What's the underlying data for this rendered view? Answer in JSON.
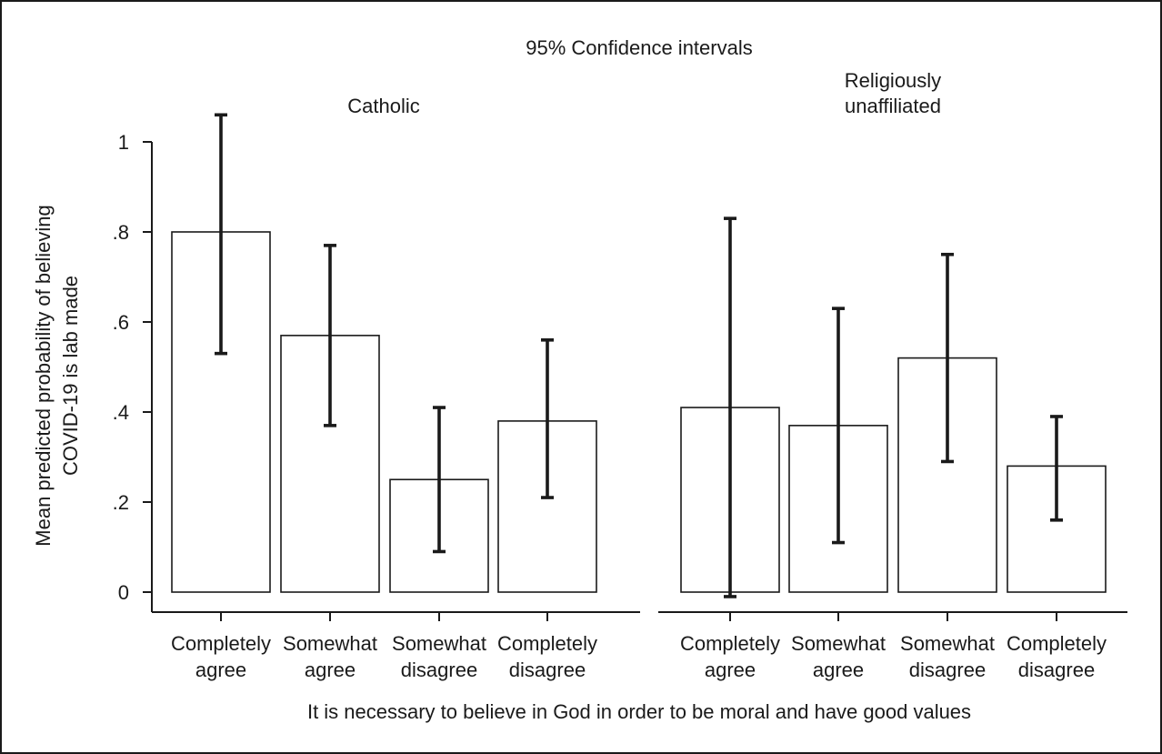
{
  "chart_data": {
    "type": "bar",
    "title": "95% Confidence intervals",
    "ylabel_lines": [
      "Mean predicted probability of believing",
      "COVID-19 is lab made"
    ],
    "xlabel": "It is necessary to believe in God in order to be moral and have good values",
    "ylim": [
      0,
      1.08
    ],
    "yticks": [
      0,
      0.2,
      0.4,
      0.6,
      0.8,
      1
    ],
    "ytick_labels": [
      "0",
      ".2",
      ".4",
      ".6",
      ".8",
      "1"
    ],
    "categories": [
      [
        "Completely",
        "agree"
      ],
      [
        "Somewhat",
        "agree"
      ],
      [
        "Somewhat",
        "disagree"
      ],
      [
        "Completely",
        "disagree"
      ]
    ],
    "panels": [
      {
        "title_lines": [
          "Catholic"
        ],
        "values": [
          0.8,
          0.57,
          0.25,
          0.38
        ],
        "ci_low": [
          0.53,
          0.37,
          0.09,
          0.21
        ],
        "ci_high": [
          1.06,
          0.77,
          0.41,
          0.56
        ]
      },
      {
        "title_lines": [
          "Religiously",
          "unaffiliated"
        ],
        "values": [
          0.41,
          0.37,
          0.52,
          0.28
        ],
        "ci_low": [
          -0.01,
          0.11,
          0.29,
          0.16
        ],
        "ci_high": [
          0.83,
          0.63,
          0.75,
          0.39
        ]
      }
    ],
    "grid": false,
    "legend": "none"
  }
}
